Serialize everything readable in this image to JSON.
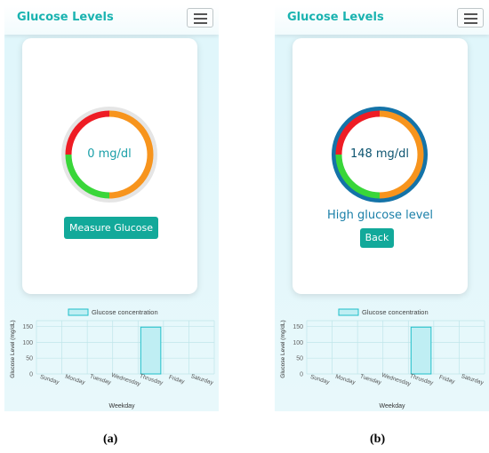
{
  "screens": [
    {
      "id": "a",
      "app_title": "Glucose Levels",
      "gauge_value": "0 mg/dl",
      "primary_button": "Measure Glucose",
      "status_text": "",
      "chart_data": {
        "type": "bar",
        "legend": "Glucose concentration",
        "categories": [
          "Sunday",
          "Monday",
          "Tuesday",
          "Wednesday",
          "Thrusday",
          "Friday",
          "Saturday"
        ],
        "values": [
          0,
          0,
          0,
          0,
          148,
          0,
          0
        ],
        "yticks": [
          0,
          50,
          100,
          150
        ],
        "ylim": [
          0,
          160
        ],
        "xlabel": "Weekday",
        "ylabel": "Glucose Level (mg/dL)",
        "grid": true
      },
      "caption": "(a)"
    },
    {
      "id": "b",
      "app_title": "Glucose Levels",
      "gauge_value": "148 mg/dl",
      "primary_button": "Back",
      "status_text": "High glucose level",
      "chart_data": {
        "type": "bar",
        "legend": "Glucose concentration",
        "categories": [
          "Sunday",
          "Monday",
          "Tuesday",
          "Wednesday",
          "Thrusday",
          "Friday",
          "Saturday"
        ],
        "values": [
          0,
          0,
          0,
          0,
          148,
          0,
          0
        ],
        "yticks": [
          0,
          50,
          100,
          150
        ],
        "ylim": [
          0,
          160
        ],
        "xlabel": "Weekday",
        "ylabel": "Glucose Level (mg/dL)",
        "grid": true
      },
      "caption": "(b)"
    }
  ],
  "colors": {
    "accent": "#12a99a",
    "title": "#1ab3b0",
    "gauge_red": "#ee1c24",
    "gauge_orange": "#f7941d",
    "gauge_green": "#39d639",
    "ring_idle": "#e5e5e5",
    "ring_active": "#1473a8",
    "bar_fill": "#bfeef3",
    "bar_stroke": "#1fbfc9"
  }
}
